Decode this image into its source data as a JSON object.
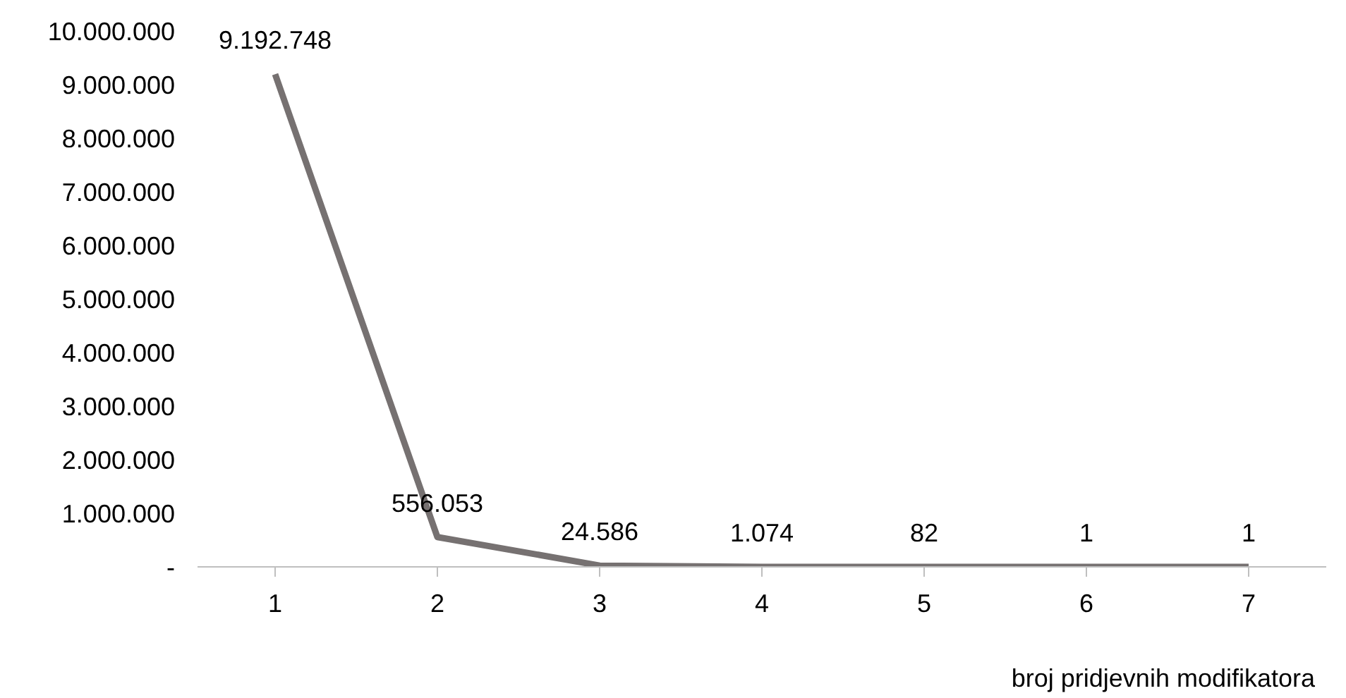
{
  "chart_data": {
    "type": "line",
    "xlabel": "broj pridjevnih modifikatora",
    "categories": [
      "1",
      "2",
      "3",
      "4",
      "5",
      "6",
      "7"
    ],
    "series": [
      {
        "color": "#767171",
        "values": [
          9192748,
          556053,
          24586,
          1074,
          82,
          1,
          1
        ],
        "value_labels": [
          "9.192.748",
          "556.053",
          "24.586",
          "1.074",
          "82",
          "1",
          "1"
        ]
      }
    ],
    "ylim": [
      0,
      10000000
    ],
    "yticks": [
      {
        "value": 0,
        "label": "-"
      },
      {
        "value": 1000000,
        "label": "1.000.000"
      },
      {
        "value": 2000000,
        "label": "2.000.000"
      },
      {
        "value": 3000000,
        "label": "3.000.000"
      },
      {
        "value": 4000000,
        "label": "4.000.000"
      },
      {
        "value": 5000000,
        "label": "5.000.000"
      },
      {
        "value": 6000000,
        "label": "6.000.000"
      },
      {
        "value": 7000000,
        "label": "7.000.000"
      },
      {
        "value": 8000000,
        "label": "8.000.000"
      },
      {
        "value": 9000000,
        "label": "9.000.000"
      },
      {
        "value": 10000000,
        "label": "10.000.000"
      }
    ],
    "grid": false,
    "legend": false,
    "marker": "none",
    "line_style": "solid"
  }
}
